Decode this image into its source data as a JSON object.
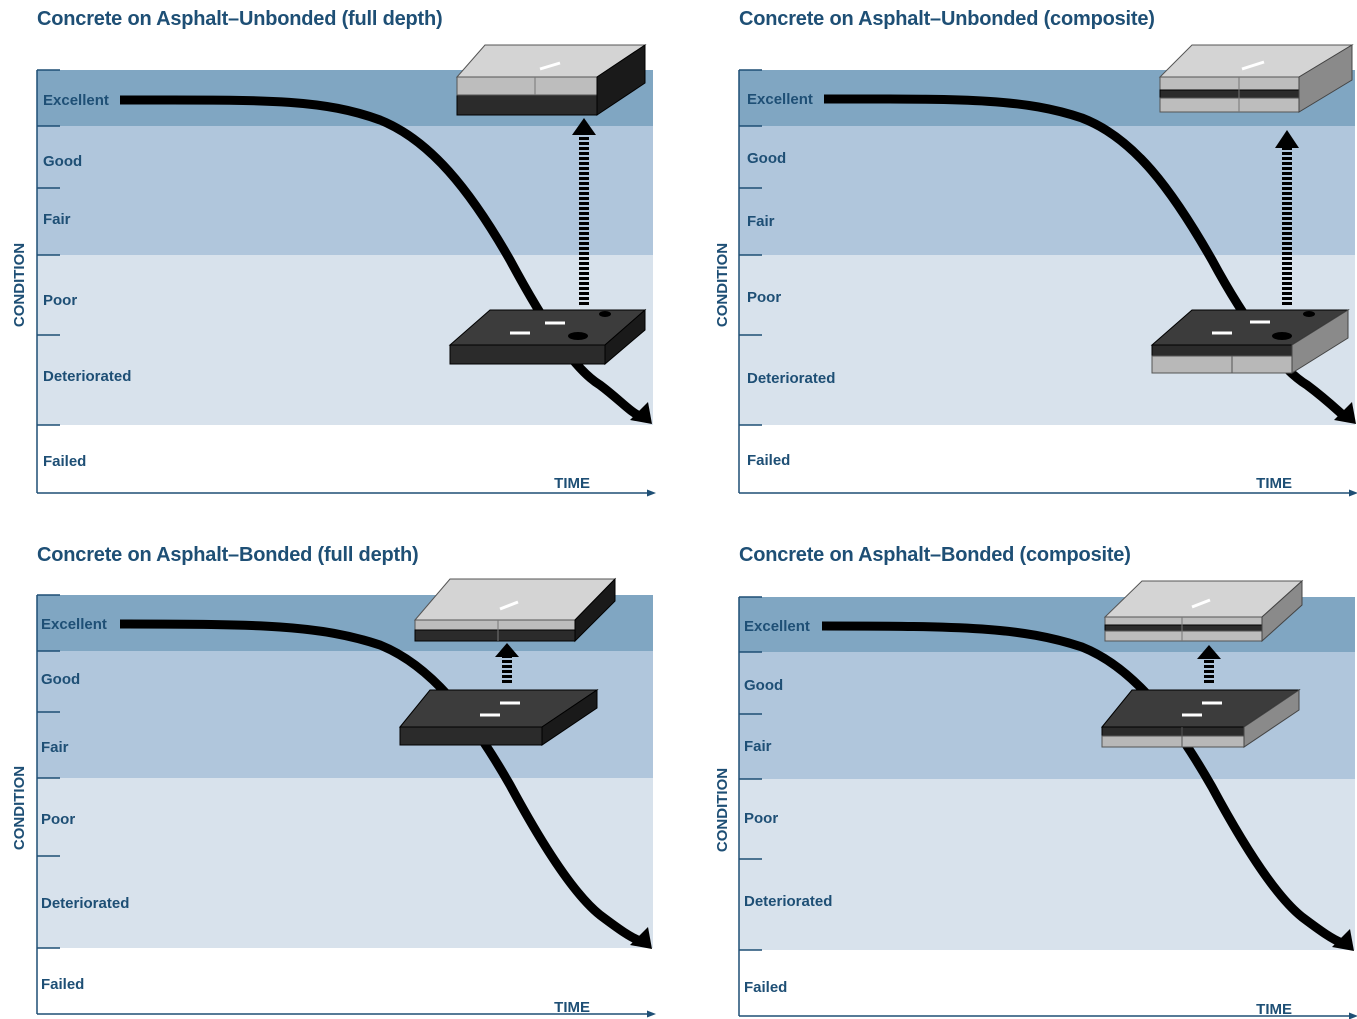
{
  "panels": [
    {
      "title": "Concrete on Asphalt–Unbonded (full depth)",
      "y_axis_label": "CONDITION",
      "x_axis_label": "TIME",
      "bands": [
        "Excellent",
        "Good",
        "Fair",
        "Poor",
        "Deteriorated",
        "Failed"
      ],
      "overlay": "unbonded",
      "base": "full-depth"
    },
    {
      "title": "Concrete on Asphalt–Unbonded (composite)",
      "y_axis_label": "CONDITION",
      "x_axis_label": "TIME",
      "bands": [
        "Excellent",
        "Good",
        "Fair",
        "Poor",
        "Deteriorated",
        "Failed"
      ],
      "overlay": "unbonded",
      "base": "composite"
    },
    {
      "title": "Concrete on Asphalt–Bonded (full depth)",
      "y_axis_label": "CONDITION",
      "x_axis_label": "TIME",
      "bands": [
        "Excellent",
        "Good",
        "Fair",
        "Poor",
        "Deteriorated",
        "Failed"
      ],
      "overlay": "bonded",
      "base": "full-depth"
    },
    {
      "title": "Concrete on Asphalt–Bonded (composite)",
      "y_axis_label": "CONDITION",
      "x_axis_label": "TIME",
      "bands": [
        "Excellent",
        "Good",
        "Fair",
        "Poor",
        "Deteriorated",
        "Failed"
      ],
      "overlay": "bonded",
      "base": "composite"
    }
  ],
  "colors": {
    "title": "#1e4f75",
    "band_excellent": "#80a6c2",
    "band_good_fair": "#b0c6dc",
    "band_poor_deteriorated": "#d8e2ec",
    "band_failed": "#ffffff",
    "curve": "#000000",
    "concrete_top": "#d0d0d0",
    "asphalt_top": "#333333"
  }
}
